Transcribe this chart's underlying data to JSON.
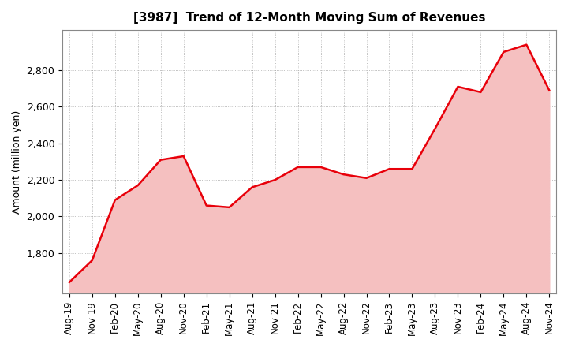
{
  "title": "[3987]  Trend of 12-Month Moving Sum of Revenues",
  "ylabel": "Amount (million yen)",
  "line_color": "#e8000a",
  "fill_color": "#f5c0c0",
  "background_color": "#ffffff",
  "grid_color": "#aaaaaa",
  "ylim": [
    1580,
    3020
  ],
  "yticks": [
    1800,
    2000,
    2200,
    2400,
    2600,
    2800
  ],
  "x_labels": [
    "Aug-19",
    "Nov-19",
    "Feb-20",
    "May-20",
    "Aug-20",
    "Nov-20",
    "Feb-21",
    "May-21",
    "Aug-21",
    "Nov-21",
    "Feb-22",
    "May-22",
    "Aug-22",
    "Nov-22",
    "Feb-23",
    "May-23",
    "Aug-23",
    "Nov-23",
    "Feb-24",
    "May-24",
    "Aug-24",
    "Nov-24"
  ],
  "values": [
    1640,
    1760,
    2090,
    2170,
    2310,
    2330,
    2060,
    2050,
    2160,
    2200,
    2270,
    2270,
    2230,
    2210,
    2260,
    2260,
    2480,
    2710,
    2680,
    2900,
    2940,
    2690
  ]
}
